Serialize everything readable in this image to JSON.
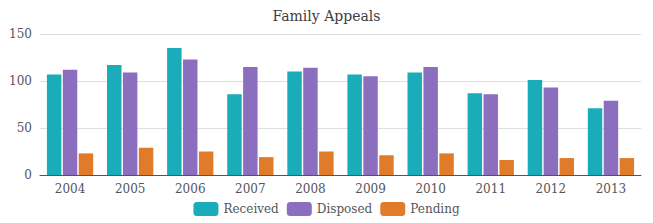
{
  "chart_data": {
    "type": "bar",
    "title": "Family Appeals",
    "categories": [
      "2004",
      "2005",
      "2006",
      "2007",
      "2008",
      "2009",
      "2010",
      "2011",
      "2012",
      "2013"
    ],
    "series": [
      {
        "name": "Received",
        "color": "#1AACB8",
        "values": [
          107,
          117,
          135,
          86,
          110,
          107,
          109,
          87,
          101,
          71
        ]
      },
      {
        "name": "Disposed",
        "color": "#8B6FBE",
        "values": [
          112,
          109,
          123,
          115,
          114,
          105,
          115,
          86,
          93,
          79
        ]
      },
      {
        "name": "Pending",
        "color": "#E07B2A",
        "values": [
          23,
          29,
          25,
          19,
          25,
          21,
          23,
          16,
          18,
          18
        ]
      }
    ],
    "ylim": [
      0,
      150
    ],
    "yticks": [
      0,
      50,
      100,
      150
    ],
    "grid": true,
    "legend": "bottom"
  }
}
